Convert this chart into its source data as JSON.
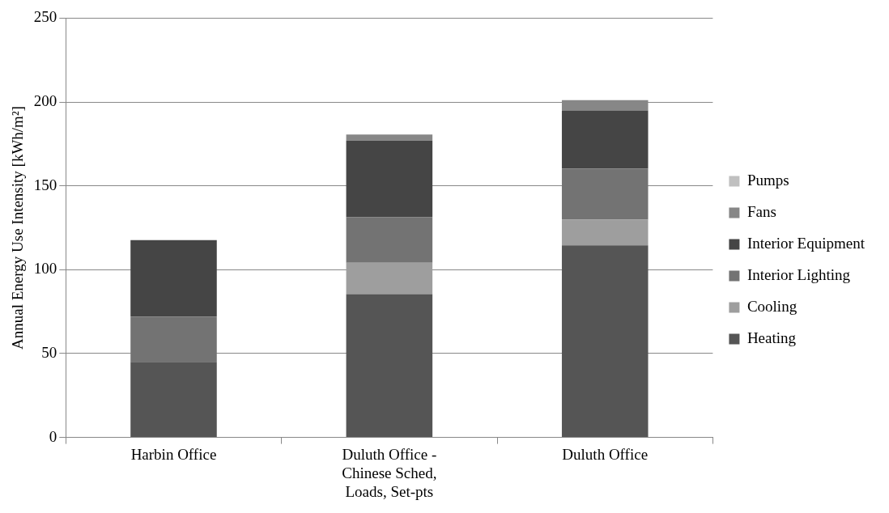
{
  "chart_data": {
    "type": "bar",
    "stacked": true,
    "ylabel": "Annual Energy Use Intensity [kWh/m²]",
    "categories": [
      "Harbin Office",
      "Duluth Office - Chinese Sched, Loads, Set-pts",
      "Duluth Office"
    ],
    "series": [
      {
        "name": "Heating",
        "color": "#555555",
        "values": [
          45,
          85.4,
          114.5
        ]
      },
      {
        "name": "Cooling",
        "color": "#9e9e9e",
        "values": [
          0,
          18.7,
          15.3
        ]
      },
      {
        "name": "Interior Lighting",
        "color": "#737373",
        "values": [
          27,
          27.3,
          30.5
        ]
      },
      {
        "name": "Interior Equipment",
        "color": "#454545",
        "values": [
          45.6,
          45.6,
          34.7
        ]
      },
      {
        "name": "Fans",
        "color": "#878787",
        "values": [
          0,
          3.6,
          6.1
        ]
      },
      {
        "name": "Pumps",
        "color": "#c0c0c0",
        "values": [
          0,
          0,
          0
        ]
      }
    ],
    "ylim": [
      0,
      250
    ],
    "yticks": [
      0,
      50,
      100,
      150,
      200,
      250
    ],
    "grid": "y",
    "legend": "right"
  }
}
